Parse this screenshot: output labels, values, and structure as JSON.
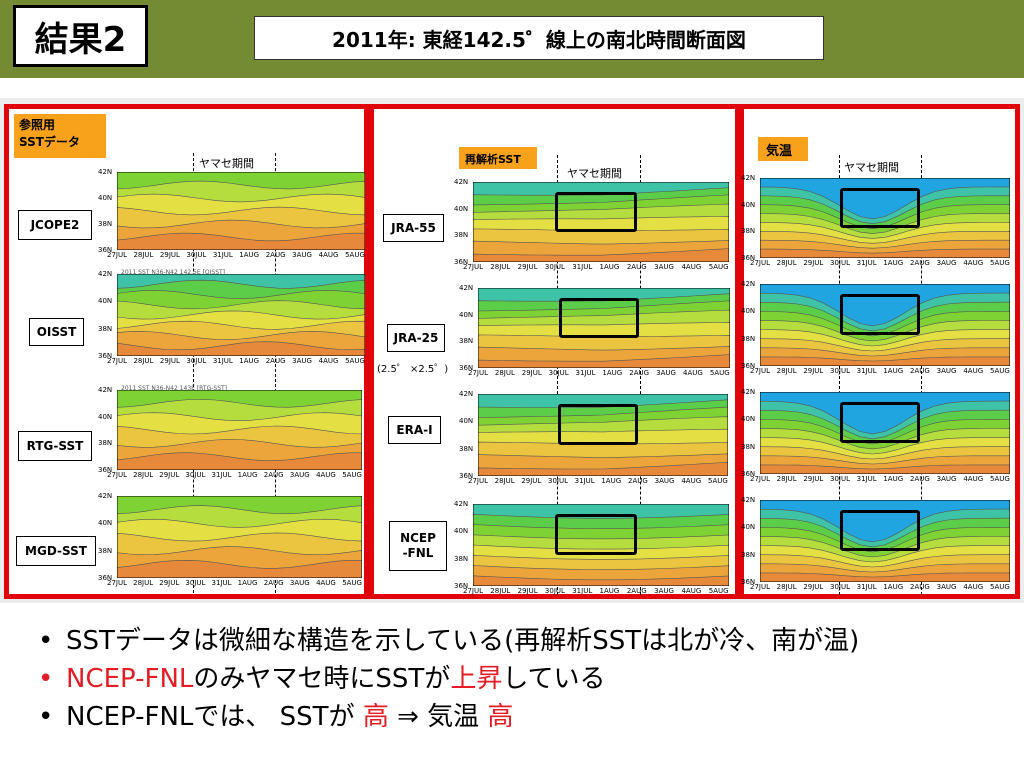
{
  "header": {
    "slide_label": "結果2",
    "title": "2011年: 東経142.5゜線上の南北時間断面図"
  },
  "y_ticks": [
    "42N",
    "40N",
    "38N",
    "36N"
  ],
  "x_ticks": [
    "27JUL",
    "28JUL",
    "29JUL",
    "30JUL",
    "31JUL",
    "1AUG",
    "2AUG",
    "3AUG",
    "4AUG",
    "5AUG"
  ],
  "period_label": "ヤマセ期間",
  "panel_left": {
    "tag_line1": "参照用",
    "tag_line2": "SSTデータ",
    "datasets": [
      {
        "name": "JCOPE2"
      },
      {
        "name": "OISST",
        "caption": "2011 SST N36-N42 142.5E [OISST]"
      },
      {
        "name": "RTG-SST",
        "caption": "2011 SST N36-N42 143E [RTG-SST]"
      },
      {
        "name": "MGD-SST"
      }
    ]
  },
  "panel_middle": {
    "tag": "再解析SST",
    "datasets": [
      {
        "name": "JRA-55"
      },
      {
        "name": "JRA-25",
        "sub": "(2.5゜ ×2.5゜)"
      },
      {
        "name": "ERA-I"
      },
      {
        "name_line1": "NCEP",
        "name_line2": "-FNL"
      }
    ]
  },
  "panel_right": {
    "tag": "気温"
  },
  "bullets": [
    {
      "dot": "•",
      "text": "SSTデータは微細な構造を示している(再解析SSTは北が冷、南が温)"
    },
    {
      "dot": "•",
      "red_a": "NCEP-FNL",
      "text_a": "のみヤマセ時にSSTが",
      "red_b": "上昇",
      "text_b": "している"
    },
    {
      "dot": "•",
      "text_a": "NCEP-FNLでは、 SSTが ",
      "red_a": "高",
      "text_b": " ⇒ 気温 ",
      "red_b": "高"
    }
  ],
  "colors": {
    "header": "#758b33",
    "panel_border": "#e0040a",
    "tag": "#f7a21a",
    "emphasis": "#e51c23"
  }
}
